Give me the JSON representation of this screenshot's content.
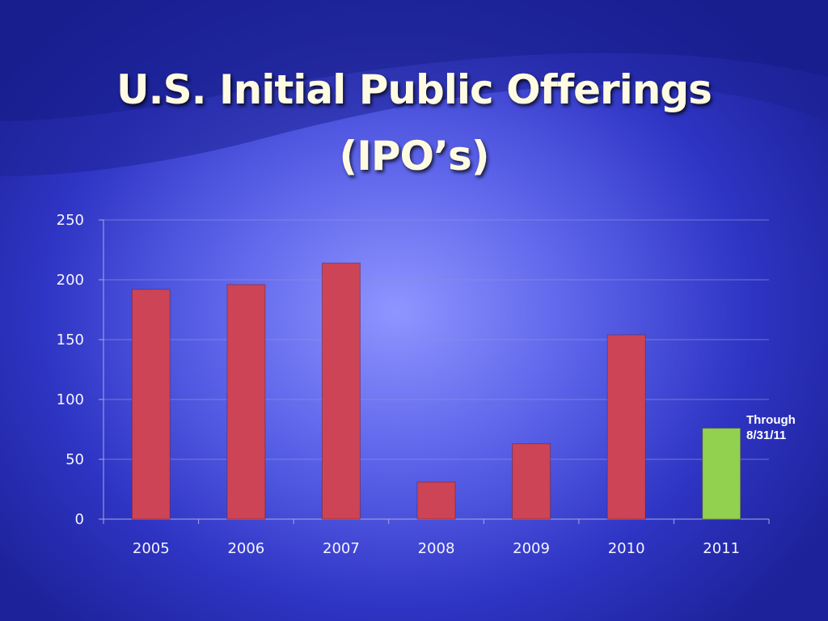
{
  "slide": {
    "title_line1": "U.S. Initial Public Offerings",
    "title_line2": "(IPO’s)"
  },
  "chart_data": {
    "type": "bar",
    "title": "U.S. Initial Public Offerings (IPO’s)",
    "xlabel": "",
    "ylabel": "",
    "categories": [
      "2005",
      "2006",
      "2007",
      "2008",
      "2009",
      "2010",
      "2011"
    ],
    "values": [
      192,
      196,
      214,
      31,
      63,
      154,
      76
    ],
    "ylim": [
      0,
      250
    ],
    "yticks": [
      0,
      50,
      100,
      150,
      200,
      250
    ],
    "grid": true,
    "legend": "none",
    "bar_colors": [
      "#cc4455",
      "#cc4455",
      "#cc4455",
      "#cc4455",
      "#cc4455",
      "#cc4455",
      "#92d050"
    ],
    "annotations": [
      {
        "category": "2011",
        "line1": "Through",
        "line2": "8/31/11"
      }
    ]
  }
}
